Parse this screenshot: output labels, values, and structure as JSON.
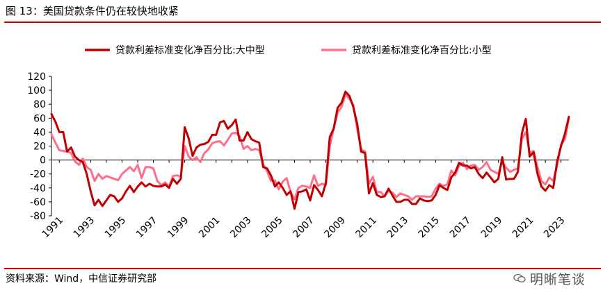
{
  "header": {
    "title": "图 13：美国贷款条件仍在较快地收紧"
  },
  "footer": {
    "source": "资料来源：Wind，中信证券研究部",
    "watermark": "明晰笔谈"
  },
  "chart_data": {
    "type": "line",
    "title": "图 13：美国贷款条件仍在较快地收紧",
    "xlabel": "",
    "ylabel": "",
    "ylim": [
      -80,
      120
    ],
    "yticks": [
      "120",
      "100",
      "80",
      "60",
      "40",
      "20",
      "0",
      "-20",
      "-40",
      "-60",
      "-80"
    ],
    "ytick_values": [
      120,
      100,
      80,
      60,
      40,
      20,
      0,
      -20,
      -40,
      -60,
      -80
    ],
    "xlim": [
      1990.5,
      2023.5
    ],
    "xticks": [
      "1991",
      "1993",
      "1995",
      "1997",
      "1999",
      "2001",
      "2003",
      "2005",
      "2007",
      "2009",
      "2011",
      "2013",
      "2015",
      "2017",
      "2019",
      "2021",
      "2023"
    ],
    "xtick_values": [
      1991,
      1993,
      1995,
      1997,
      1999,
      2001,
      2003,
      2005,
      2007,
      2009,
      2011,
      2013,
      2015,
      2017,
      2019,
      2021,
      2023
    ],
    "legend_position": "top",
    "series": [
      {
        "name": "贷款利差标准变化净百分比:大中型",
        "color": "#c00000",
        "points": [
          [
            1990.5,
            66
          ],
          [
            1990.75,
            55
          ],
          [
            1991.0,
            40
          ],
          [
            1991.25,
            40
          ],
          [
            1991.5,
            12
          ],
          [
            1991.75,
            18
          ],
          [
            1992.0,
            5
          ],
          [
            1992.25,
            0
          ],
          [
            1992.5,
            -3
          ],
          [
            1992.75,
            -20
          ],
          [
            1993.0,
            -45
          ],
          [
            1993.25,
            -65
          ],
          [
            1993.5,
            -57
          ],
          [
            1993.75,
            -66
          ],
          [
            1994.0,
            -58
          ],
          [
            1994.25,
            -50
          ],
          [
            1994.5,
            -52
          ],
          [
            1994.75,
            -60
          ],
          [
            1995.0,
            -55
          ],
          [
            1995.25,
            -45
          ],
          [
            1995.5,
            -37
          ],
          [
            1995.75,
            -46
          ],
          [
            1996.0,
            -38
          ],
          [
            1996.25,
            -32
          ],
          [
            1996.5,
            -38
          ],
          [
            1996.75,
            -34
          ],
          [
            1997.0,
            -37
          ],
          [
            1997.25,
            -38
          ],
          [
            1997.5,
            -38
          ],
          [
            1997.75,
            -35
          ],
          [
            1998.0,
            -40
          ],
          [
            1998.25,
            -27
          ],
          [
            1998.5,
            -34
          ],
          [
            1998.75,
            -27
          ],
          [
            1999.0,
            47
          ],
          [
            1999.25,
            31
          ],
          [
            1999.5,
            6
          ],
          [
            1999.75,
            18
          ],
          [
            2000.0,
            22
          ],
          [
            2000.25,
            23
          ],
          [
            2000.5,
            26
          ],
          [
            2000.75,
            36
          ],
          [
            2001.0,
            36
          ],
          [
            2001.25,
            54
          ],
          [
            2001.5,
            56
          ],
          [
            2001.75,
            45
          ],
          [
            2002.0,
            50
          ],
          [
            2002.25,
            58
          ],
          [
            2002.5,
            28
          ],
          [
            2002.75,
            28
          ],
          [
            2003.0,
            40
          ],
          [
            2003.25,
            30
          ],
          [
            2003.5,
            27
          ],
          [
            2003.75,
            25
          ],
          [
            2004.0,
            -10
          ],
          [
            2004.25,
            -12
          ],
          [
            2004.5,
            -22
          ],
          [
            2004.75,
            -38
          ],
          [
            2005.0,
            -32
          ],
          [
            2005.25,
            -40
          ],
          [
            2005.5,
            -50
          ],
          [
            2005.75,
            -45
          ],
          [
            2006.0,
            -70
          ],
          [
            2006.25,
            -46
          ],
          [
            2006.5,
            -45
          ],
          [
            2006.75,
            -42
          ],
          [
            2007.0,
            -58
          ],
          [
            2007.25,
            -36
          ],
          [
            2007.5,
            -43
          ],
          [
            2007.75,
            -52
          ],
          [
            2008.0,
            -33
          ],
          [
            2008.25,
            33
          ],
          [
            2008.5,
            45
          ],
          [
            2008.75,
            75
          ],
          [
            2009.0,
            82
          ],
          [
            2009.25,
            98
          ],
          [
            2009.5,
            92
          ],
          [
            2009.75,
            76
          ],
          [
            2010.0,
            52
          ],
          [
            2010.25,
            12
          ],
          [
            2010.5,
            10
          ],
          [
            2010.75,
            -48
          ],
          [
            2011.0,
            -33
          ],
          [
            2011.25,
            -50
          ],
          [
            2011.5,
            -53
          ],
          [
            2011.75,
            -52
          ],
          [
            2012.0,
            -41
          ],
          [
            2012.25,
            -51
          ],
          [
            2012.5,
            -60
          ],
          [
            2012.75,
            -60
          ],
          [
            2013.0,
            -57
          ],
          [
            2013.25,
            -57
          ],
          [
            2013.5,
            -63
          ],
          [
            2013.75,
            -63
          ],
          [
            2014.0,
            -55
          ],
          [
            2014.25,
            -58
          ],
          [
            2014.5,
            -59
          ],
          [
            2014.75,
            -58
          ],
          [
            2015.0,
            -50
          ],
          [
            2015.25,
            -36
          ],
          [
            2015.5,
            -40
          ],
          [
            2015.75,
            -43
          ],
          [
            2016.0,
            -25
          ],
          [
            2016.25,
            -18
          ],
          [
            2016.5,
            -4
          ],
          [
            2016.75,
            -8
          ],
          [
            2017.0,
            -8
          ],
          [
            2017.25,
            -12
          ],
          [
            2017.5,
            -10
          ],
          [
            2017.75,
            -20
          ],
          [
            2018.0,
            -26
          ],
          [
            2018.25,
            -18
          ],
          [
            2018.5,
            -25
          ],
          [
            2018.75,
            -32
          ],
          [
            2019.0,
            -27
          ],
          [
            2019.25,
            4
          ],
          [
            2019.5,
            -28
          ],
          [
            2019.75,
            -27
          ],
          [
            2020.0,
            -27
          ],
          [
            2020.25,
            -17
          ],
          [
            2020.5,
            38
          ],
          [
            2020.75,
            59
          ],
          [
            2021.0,
            5
          ],
          [
            2021.25,
            11
          ],
          [
            2021.5,
            -20
          ],
          [
            2021.75,
            -38
          ],
          [
            2022.0,
            -44
          ],
          [
            2022.25,
            -36
          ],
          [
            2022.5,
            -40
          ],
          [
            2022.75,
            -2
          ],
          [
            2023.0,
            20
          ],
          [
            2023.25,
            38
          ],
          [
            2023.5,
            62
          ]
        ]
      },
      {
        "name": "贷款利差标准变化净百分比:小型",
        "color": "#ff6f8a",
        "points": [
          [
            1990.5,
            37
          ],
          [
            1990.75,
            25
          ],
          [
            1991.0,
            14
          ],
          [
            1991.25,
            13
          ],
          [
            1991.5,
            12
          ],
          [
            1991.75,
            10
          ],
          [
            1992.0,
            -2
          ],
          [
            1992.25,
            -7
          ],
          [
            1992.5,
            2
          ],
          [
            1992.75,
            -10
          ],
          [
            1993.0,
            -14
          ],
          [
            1993.25,
            -30
          ],
          [
            1993.5,
            -20
          ],
          [
            1993.75,
            -27
          ],
          [
            1994.0,
            -23
          ],
          [
            1994.25,
            -25
          ],
          [
            1994.5,
            -27
          ],
          [
            1994.75,
            -29
          ],
          [
            1995.0,
            -20
          ],
          [
            1995.25,
            -15
          ],
          [
            1995.5,
            -10
          ],
          [
            1995.75,
            -16
          ],
          [
            1996.0,
            -7
          ],
          [
            1996.25,
            -26
          ],
          [
            1996.5,
            -10
          ],
          [
            1996.75,
            -10
          ],
          [
            1997.0,
            -12
          ],
          [
            1997.25,
            -30
          ],
          [
            1997.5,
            -36
          ],
          [
            1997.75,
            -32
          ],
          [
            1998.0,
            -38
          ],
          [
            1998.25,
            -23
          ],
          [
            1998.5,
            -22
          ],
          [
            1998.75,
            -24
          ],
          [
            1999.0,
            20
          ],
          [
            1999.25,
            5
          ],
          [
            1999.5,
            0
          ],
          [
            1999.75,
            4
          ],
          [
            2000.0,
            -3
          ],
          [
            2000.25,
            10
          ],
          [
            2000.5,
            15
          ],
          [
            2000.75,
            24
          ],
          [
            2001.0,
            26
          ],
          [
            2001.25,
            27
          ],
          [
            2001.5,
            21
          ],
          [
            2001.75,
            29
          ],
          [
            2002.0,
            38
          ],
          [
            2002.25,
            39
          ],
          [
            2002.5,
            34
          ],
          [
            2002.75,
            16
          ],
          [
            2003.0,
            20
          ],
          [
            2003.25,
            14
          ],
          [
            2003.5,
            16
          ],
          [
            2003.75,
            14
          ],
          [
            2004.0,
            -6
          ],
          [
            2004.25,
            -16
          ],
          [
            2004.5,
            -30
          ],
          [
            2004.75,
            -29
          ],
          [
            2005.0,
            -42
          ],
          [
            2005.25,
            -31
          ],
          [
            2005.5,
            -26
          ],
          [
            2005.75,
            -46
          ],
          [
            2006.0,
            -56
          ],
          [
            2006.25,
            -40
          ],
          [
            2006.5,
            -37
          ],
          [
            2006.75,
            -38
          ],
          [
            2007.0,
            -40
          ],
          [
            2007.25,
            -22
          ],
          [
            2007.5,
            -37
          ],
          [
            2007.75,
            -34
          ],
          [
            2008.0,
            -36
          ],
          [
            2008.25,
            20
          ],
          [
            2008.5,
            45
          ],
          [
            2008.75,
            68
          ],
          [
            2009.0,
            76
          ],
          [
            2009.25,
            94
          ],
          [
            2009.5,
            88
          ],
          [
            2009.75,
            79
          ],
          [
            2010.0,
            45
          ],
          [
            2010.25,
            15
          ],
          [
            2010.5,
            12
          ],
          [
            2010.75,
            -34
          ],
          [
            2011.0,
            -24
          ],
          [
            2011.25,
            -46
          ],
          [
            2011.5,
            -46
          ],
          [
            2011.75,
            -52
          ],
          [
            2012.0,
            -44
          ],
          [
            2012.25,
            -47
          ],
          [
            2012.5,
            -53
          ],
          [
            2012.75,
            -48
          ],
          [
            2013.0,
            -50
          ],
          [
            2013.25,
            -52
          ],
          [
            2013.5,
            -57
          ],
          [
            2013.75,
            -52
          ],
          [
            2014.0,
            -52
          ],
          [
            2014.25,
            -52
          ],
          [
            2014.5,
            -53
          ],
          [
            2014.75,
            -52
          ],
          [
            2015.0,
            -41
          ],
          [
            2015.25,
            -34
          ],
          [
            2015.5,
            -37
          ],
          [
            2015.75,
            -35
          ],
          [
            2016.0,
            -15
          ],
          [
            2016.25,
            -22
          ],
          [
            2016.5,
            -8
          ],
          [
            2016.75,
            -4
          ],
          [
            2017.0,
            -13
          ],
          [
            2017.25,
            -8
          ],
          [
            2017.5,
            -7
          ],
          [
            2017.75,
            -14
          ],
          [
            2018.0,
            -10
          ],
          [
            2018.25,
            -3
          ],
          [
            2018.5,
            -14
          ],
          [
            2018.75,
            -17
          ],
          [
            2019.0,
            -20
          ],
          [
            2019.25,
            -2
          ],
          [
            2019.5,
            -11
          ],
          [
            2019.75,
            -17
          ],
          [
            2020.0,
            -14
          ],
          [
            2020.25,
            -12
          ],
          [
            2020.5,
            30
          ],
          [
            2020.75,
            40
          ],
          [
            2021.0,
            10
          ],
          [
            2021.25,
            13
          ],
          [
            2021.5,
            -10
          ],
          [
            2021.75,
            -30
          ],
          [
            2022.0,
            -35
          ],
          [
            2022.25,
            -25
          ],
          [
            2022.5,
            -30
          ],
          [
            2022.75,
            -8
          ],
          [
            2023.0,
            22
          ],
          [
            2023.25,
            30
          ],
          [
            2023.5,
            60
          ]
        ]
      }
    ]
  }
}
